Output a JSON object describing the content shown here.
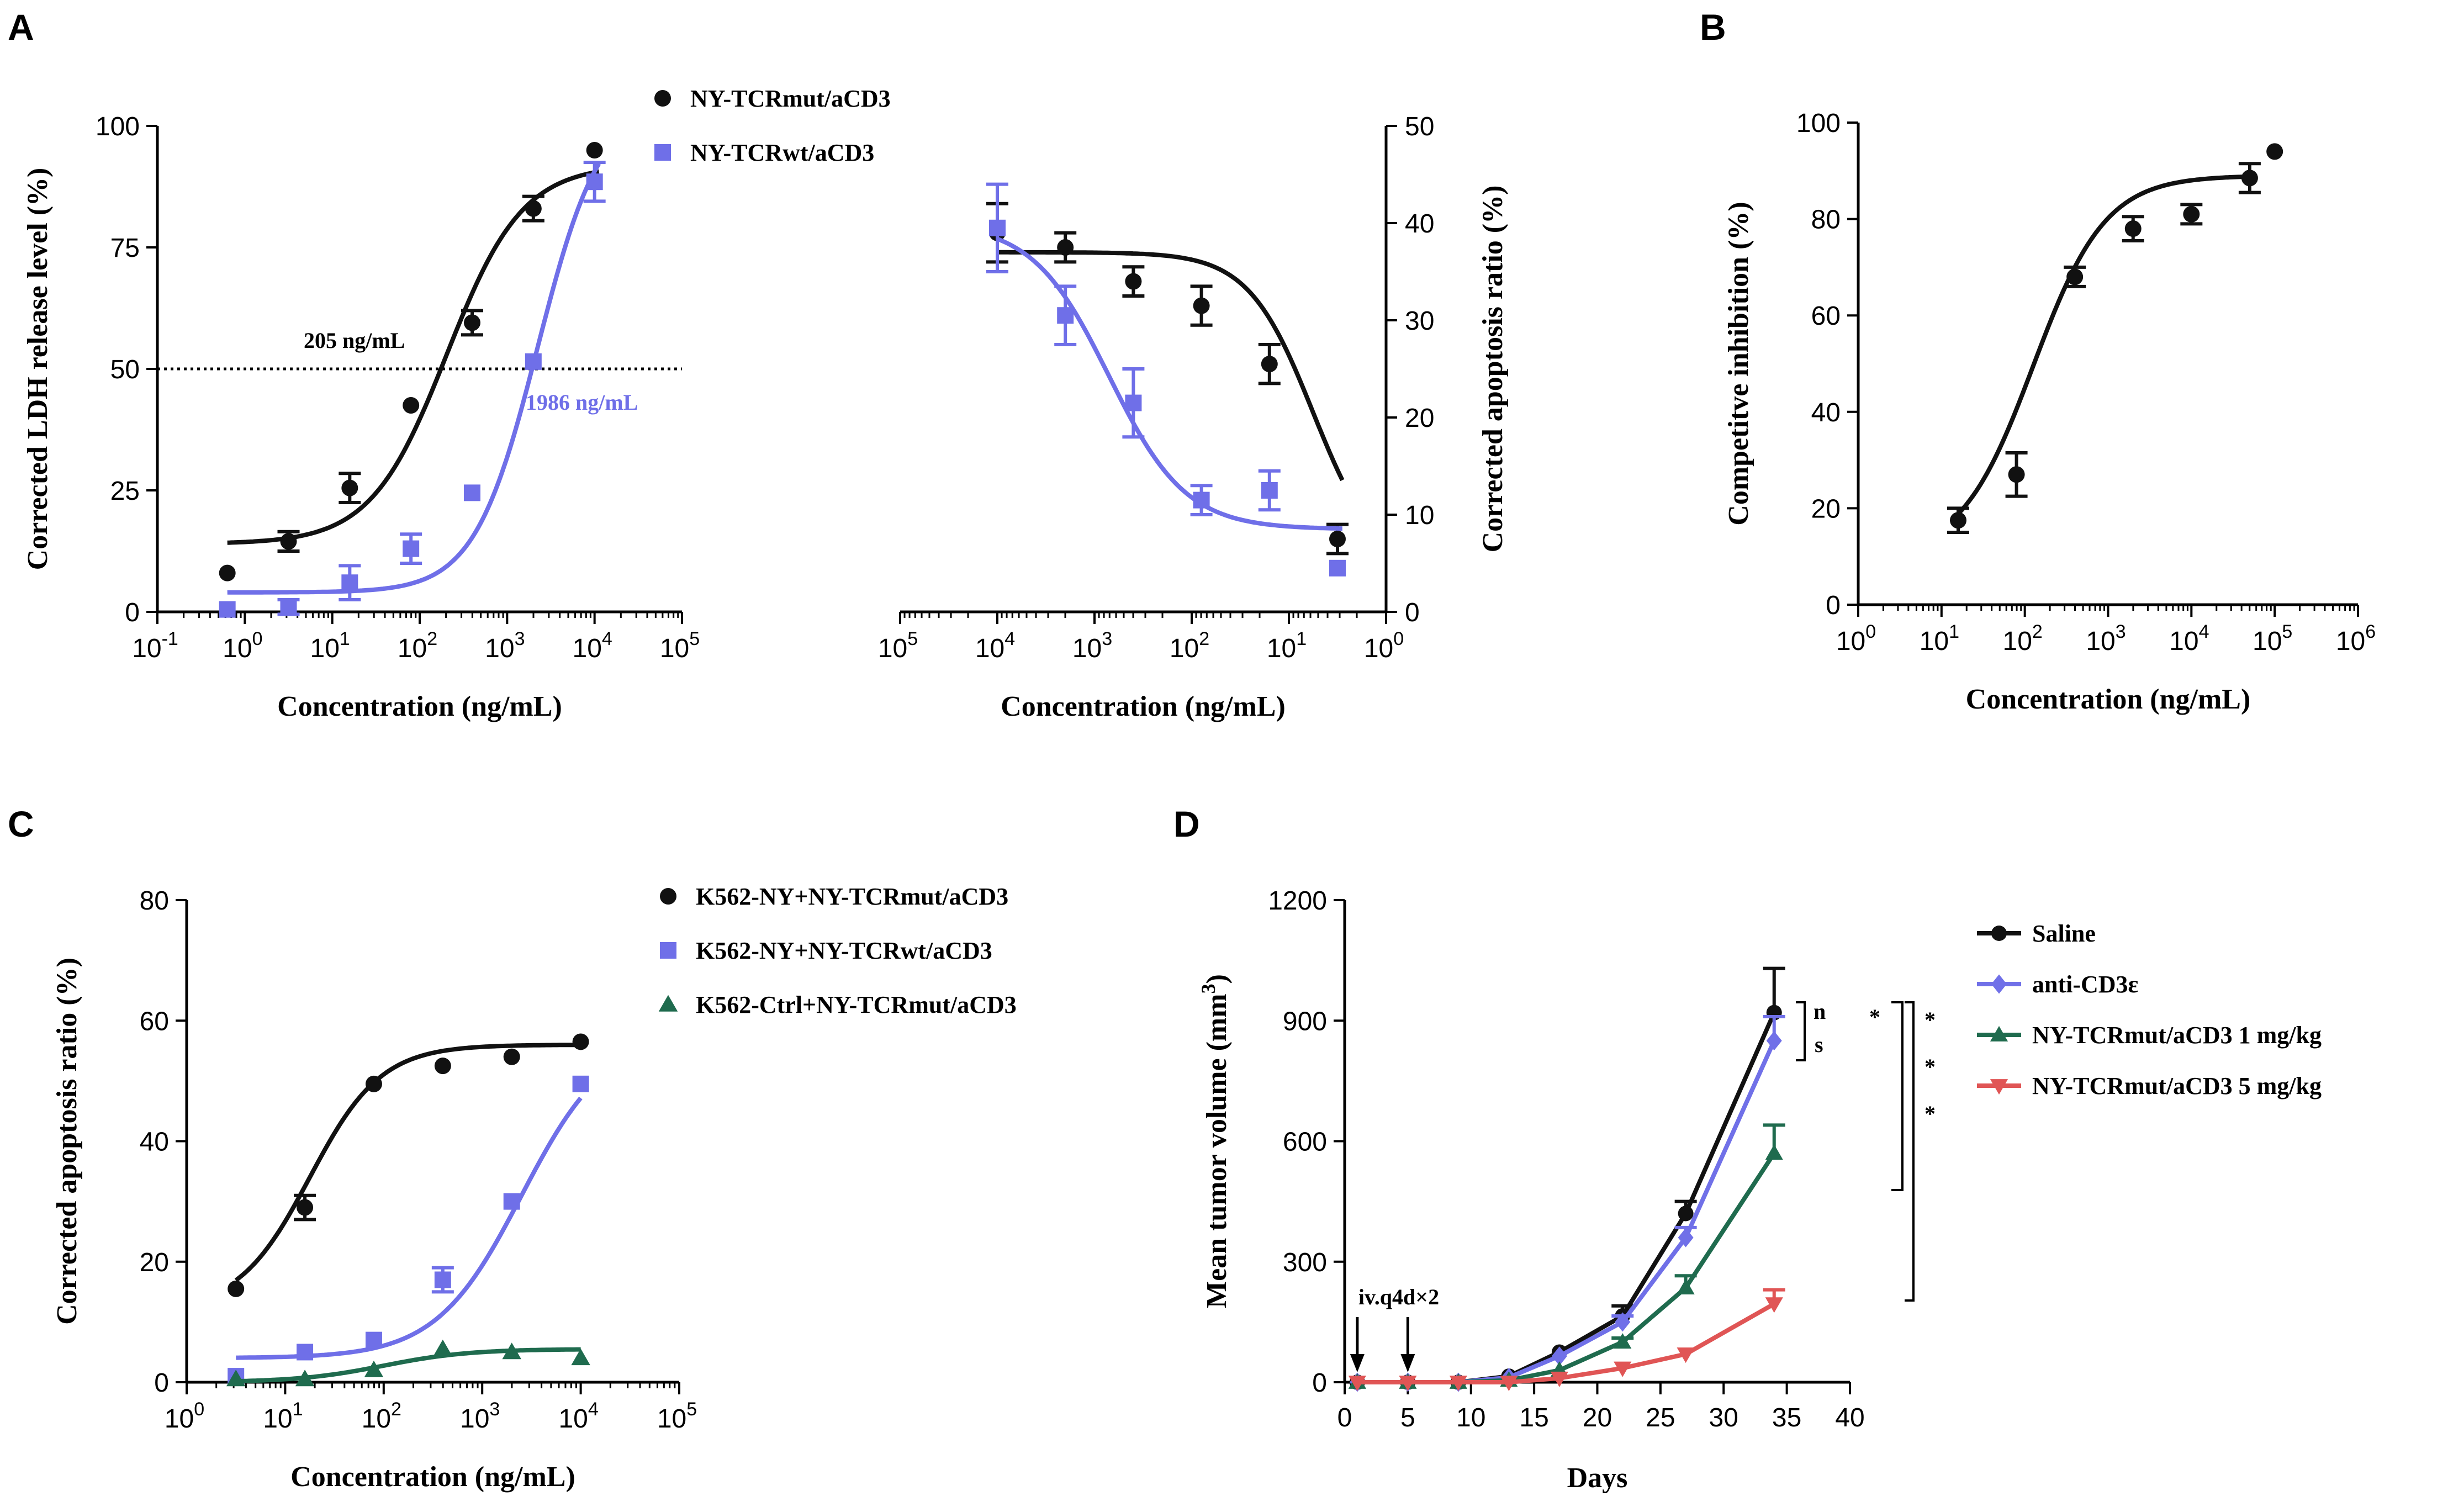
{
  "colors": {
    "black": "#111111",
    "blue": "#6f6fe8",
    "green": "#1f6b4e",
    "red": "#e05555",
    "purple": "#7070e8"
  },
  "panels": {
    "A": {
      "letter": "A"
    },
    "B": {
      "letter": "B"
    },
    "C": {
      "letter": "C"
    },
    "D": {
      "letter": "D"
    }
  },
  "chart_data": [
    {
      "id": "A-left",
      "type": "scatter",
      "xscale": "log10",
      "xlabel": "Concentration (ng/mL)",
      "ylabel": "Corrected LDH release level (%)",
      "xlim_exp": [
        -1,
        5
      ],
      "ylim": [
        0,
        100
      ],
      "yticks": [
        0,
        25,
        50,
        75,
        100
      ],
      "xtick_exponents": [
        "-1",
        "0",
        "1",
        "2",
        "3",
        "4",
        "5"
      ],
      "reference_line": {
        "y": 50,
        "style": "dotted"
      },
      "annotations": [
        {
          "text": "205 ng/mL",
          "series": "NY-TCRmut/aCD3"
        },
        {
          "text": "1986 ng/mL",
          "series": "NY-TCRwt/aCD3"
        }
      ],
      "series": [
        {
          "name": "NY-TCRmut/aCD3",
          "marker": "circle",
          "color": "black",
          "x_log": [
            -0.2,
            0.5,
            1.2,
            1.9,
            2.6,
            3.3,
            4.0
          ],
          "y": [
            8,
            14.5,
            25.5,
            42.5,
            59.5,
            83,
            95
          ],
          "err": [
            0,
            2,
            3,
            0,
            2.5,
            2.5,
            0
          ],
          "fit": {
            "bottom": 14,
            "top": 92,
            "logEC50": 2.31,
            "hill": 1
          }
        },
        {
          "name": "NY-TCRwt/aCD3",
          "marker": "square",
          "color": "blue",
          "x_log": [
            -0.2,
            0.5,
            1.2,
            1.9,
            2.6,
            3.3,
            4.0
          ],
          "y": [
            0.5,
            1,
            6,
            13,
            24.5,
            51.5,
            88.5
          ],
          "err": [
            0,
            1.5,
            3.5,
            3,
            0,
            0,
            4
          ],
          "fit": {
            "bottom": 4,
            "top": 105,
            "logEC50": 3.35,
            "hill": 1.2
          }
        }
      ]
    },
    {
      "id": "A-right",
      "type": "scatter",
      "xscale": "log10",
      "xreversed": true,
      "xlabel": "Concentration (ng/mL)",
      "ylabel": "Corrected apoptosis ratio (%)",
      "xlim_exp": [
        5,
        0
      ],
      "ylim": [
        0,
        50
      ],
      "yticks": [
        0,
        10,
        20,
        30,
        40,
        50
      ],
      "xtick_exponents": [
        "5",
        "4",
        "3",
        "2",
        "1",
        "0"
      ],
      "series": [
        {
          "name": "NY-TCRmut/aCD3",
          "marker": "circle",
          "color": "black",
          "x_log": [
            4.0,
            3.3,
            2.6,
            1.9,
            1.2,
            0.5
          ],
          "y": [
            39,
            37.5,
            34,
            31.5,
            25.5,
            7.5
          ],
          "err": [
            3,
            1.5,
            1.5,
            2,
            2,
            1.5
          ],
          "fit": {
            "bottom": 4,
            "top": 37,
            "logEC50": 0.75,
            "hill": 1.3
          }
        },
        {
          "name": "NY-TCRwt/aCD3",
          "marker": "square",
          "color": "blue",
          "x_log": [
            4.0,
            3.3,
            2.6,
            1.9,
            1.2,
            0.5
          ],
          "y": [
            39.5,
            30.5,
            21.5,
            11.5,
            12.5,
            4.5
          ],
          "err": [
            4.5,
            3,
            3.5,
            1.5,
            2,
            0
          ],
          "fit": {
            "bottom": 8.5,
            "top": 40,
            "logEC50": 2.85,
            "hill": 1.1
          }
        }
      ]
    },
    {
      "id": "B",
      "type": "scatter",
      "xscale": "log10",
      "xlabel": "Concentration (ng/mL)",
      "ylabel": "Competitve inhibition (%)",
      "xlim_exp": [
        0,
        6
      ],
      "ylim": [
        0,
        100
      ],
      "yticks": [
        0,
        20,
        40,
        60,
        80,
        100
      ],
      "xtick_exponents": [
        "0",
        "1",
        "2",
        "3",
        "4",
        "5",
        "6"
      ],
      "series": [
        {
          "name": "Competitive inhibition",
          "marker": "circle",
          "color": "black",
          "x_log": [
            1.2,
            1.9,
            2.6,
            3.3,
            4.0,
            4.7,
            5.0
          ],
          "y": [
            17.5,
            27,
            68,
            78,
            81,
            88.5,
            94
          ],
          "err": [
            2.5,
            4.5,
            2,
            2.5,
            2,
            3,
            0
          ],
          "fit": {
            "bottom": 10,
            "top": 89,
            "logEC50": 2.1,
            "hill": 1
          }
        }
      ]
    },
    {
      "id": "C",
      "type": "scatter",
      "xscale": "log10",
      "xlabel": "Concentration (ng/mL)",
      "ylabel": "Corrected apoptosis ratio (%)",
      "xlim_exp": [
        0,
        5
      ],
      "ylim": [
        0,
        80
      ],
      "yticks": [
        0,
        20,
        40,
        60,
        80
      ],
      "xtick_exponents": [
        "0",
        "1",
        "2",
        "3",
        "4",
        "5"
      ],
      "series": [
        {
          "name": "K562-NY+NY-TCRmut/aCD3",
          "marker": "circle",
          "color": "black",
          "x_log": [
            0.5,
            1.2,
            1.9,
            2.6,
            3.3,
            4.0
          ],
          "y": [
            15.5,
            29,
            49.5,
            52.5,
            54,
            56.5
          ],
          "err": [
            0,
            2,
            0,
            0,
            0,
            0
          ],
          "fit": {
            "bottom": 12,
            "top": 56,
            "logEC50": 1.25,
            "hill": 1.2
          }
        },
        {
          "name": "K562-NY+NY-TCRwt/aCD3",
          "marker": "square",
          "color": "blue",
          "x_log": [
            0.5,
            1.2,
            1.9,
            2.6,
            3.3,
            4.0
          ],
          "y": [
            1,
            5,
            7,
            17,
            30,
            49.5
          ],
          "err": [
            0,
            0,
            0,
            2,
            0,
            0
          ],
          "fit": {
            "bottom": 4,
            "top": 58,
            "logEC50": 3.4,
            "hill": 1
          }
        },
        {
          "name": "K562-Ctrl+NY-TCRmut/aCD3",
          "marker": "triangle",
          "color": "green",
          "x_log": [
            0.5,
            1.2,
            1.9,
            2.6,
            3.3,
            4.0
          ],
          "y": [
            0.5,
            0.5,
            2,
            5.5,
            5,
            4
          ],
          "err": [
            0,
            0,
            0,
            0,
            0,
            0
          ],
          "fit": {
            "bottom": 0,
            "top": 5.5,
            "logEC50": 2.0,
            "hill": 1
          }
        }
      ]
    },
    {
      "id": "D",
      "type": "line",
      "xlabel": "Days",
      "ylabel": "Mean tumor volume (mm3)",
      "ylabel_superscript": "3",
      "xlim": [
        0,
        40
      ],
      "ylim": [
        0,
        1200
      ],
      "xticks": [
        0,
        5,
        10,
        15,
        20,
        25,
        30,
        35,
        40
      ],
      "yticks": [
        0,
        300,
        600,
        900,
        1200
      ],
      "dosing": {
        "text": "iv.q4d×2",
        "days": [
          1,
          5
        ]
      },
      "significance": [
        {
          "text": "n s"
        },
        {
          "text": "*"
        },
        {
          "text": "* * *"
        }
      ],
      "x": [
        1,
        5,
        9,
        13,
        17,
        22,
        27,
        34
      ],
      "series": [
        {
          "name": "Saline",
          "marker": "circle",
          "color": "black",
          "values": [
            0,
            0,
            0,
            15,
            75,
            165,
            420,
            920
          ],
          "err": [
            0,
            0,
            0,
            0,
            0,
            25,
            30,
            110
          ]
        },
        {
          "name": "anti-CD3ε",
          "marker": "diamond",
          "color": "purple",
          "values": [
            0,
            0,
            0,
            12,
            65,
            150,
            360,
            850
          ],
          "err": [
            0,
            0,
            0,
            0,
            0,
            15,
            25,
            60
          ]
        },
        {
          "name": "NY-TCRmut/aCD3 1 mg/kg",
          "marker": "triangle",
          "color": "green",
          "values": [
            0,
            0,
            0,
            5,
            30,
            100,
            235,
            570
          ],
          "err": [
            0,
            0,
            0,
            0,
            0,
            10,
            30,
            70
          ]
        },
        {
          "name": "NY-TCRmut/aCD3 5 mg/kg",
          "marker": "triangle-down",
          "color": "red",
          "values": [
            0,
            0,
            0,
            0,
            10,
            35,
            70,
            195
          ],
          "err": [
            0,
            0,
            0,
            0,
            0,
            0,
            0,
            35
          ]
        }
      ]
    }
  ]
}
